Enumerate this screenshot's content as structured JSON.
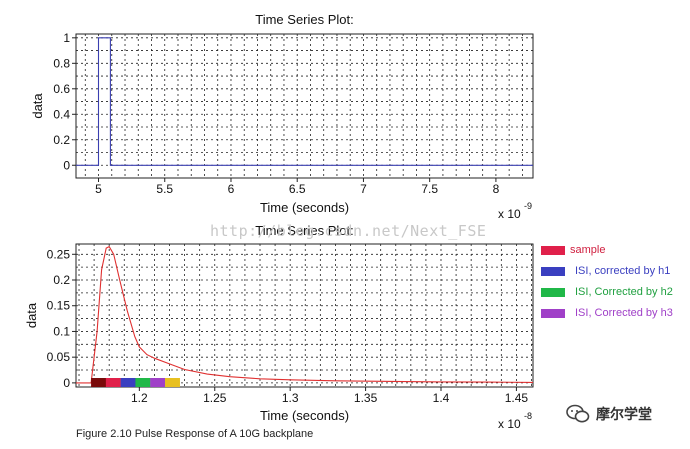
{
  "chart_data": [
    {
      "type": "line",
      "title": "Time Series Plot:",
      "xlabel": "Time (seconds)",
      "ylabel": "data",
      "x_multiplier": "x 10",
      "x_multiplier_exp": "-9",
      "xlim": [
        4.83,
        8.28
      ],
      "ylim": [
        -0.1,
        1.03
      ],
      "xticks": [
        "5",
        "5.5",
        "6",
        "6.5",
        "7",
        "7.5",
        "8"
      ],
      "xtick_values": [
        5,
        5.5,
        6,
        6.5,
        7,
        7.5,
        8
      ],
      "yticks": [
        "0",
        "0.2",
        "0.4",
        "0.6",
        "0.8",
        "1"
      ],
      "ytick_values": [
        0,
        0.2,
        0.4,
        0.6,
        0.8,
        1
      ],
      "grid": true,
      "series": [
        {
          "color": "#3a3fb0",
          "x": [
            4.83,
            5.0,
            5.0,
            5.09,
            5.09,
            8.28
          ],
          "y": [
            0,
            0,
            1,
            1,
            0,
            0
          ]
        }
      ]
    },
    {
      "type": "line",
      "title": "Time Series Plot:",
      "xlabel": "Time (seconds)",
      "ylabel": "data",
      "x_multiplier": "x 10",
      "x_multiplier_exp": "-8",
      "xlim": [
        1.158,
        1.461
      ],
      "ylim": [
        -0.008,
        0.27
      ],
      "xticks": [
        "1.2",
        "1.25",
        "1.3",
        "1.35",
        "1.4",
        "1.45"
      ],
      "xtick_values": [
        1.2,
        1.25,
        1.3,
        1.35,
        1.4,
        1.45
      ],
      "yticks": [
        "0",
        "0.05",
        "0.1",
        "0.15",
        "0.2",
        "0.25"
      ],
      "ytick_values": [
        0,
        0.05,
        0.1,
        0.15,
        0.2,
        0.25
      ],
      "grid": true,
      "series": [
        {
          "color": "#e03030",
          "x": [
            1.158,
            1.168,
            1.172,
            1.175,
            1.178,
            1.18,
            1.183,
            1.187,
            1.192,
            1.197,
            1.2,
            1.205,
            1.21,
            1.22,
            1.23,
            1.245,
            1.26,
            1.28,
            1.3,
            1.33,
            1.36,
            1.4,
            1.43,
            1.461
          ],
          "y": [
            0,
            0,
            0.1,
            0.22,
            0.262,
            0.265,
            0.25,
            0.2,
            0.14,
            0.09,
            0.07,
            0.055,
            0.048,
            0.037,
            0.026,
            0.017,
            0.012,
            0.008,
            0.006,
            0.004,
            0.003,
            0.002,
            0.0015,
            0.001
          ]
        }
      ],
      "sample_markers": {
        "x_start": 1.168,
        "x_step": 0.0098,
        "colors": [
          "#7a0a0a",
          "#e0204a",
          "#3a3fc0",
          "#20b848",
          "#a040c8",
          "#e8c020"
        ]
      },
      "legend": {
        "position": "right",
        "entries": [
          {
            "label": "sample",
            "color": "#e0204a",
            "text_color": "#d02040"
          },
          {
            "label": "ISI, corrected by h1",
            "color": "#3a3fc0",
            "text_color": "#3a3fc0"
          },
          {
            "label": "ISI, Corrected by h2",
            "color": "#20b848",
            "text_color": "#20a040"
          },
          {
            "label": "ISI, Corrected by h3",
            "color": "#a040c8",
            "text_color": "#a040c8"
          }
        ]
      }
    }
  ],
  "caption": "Figure 2.10 Pulse Response of A 10G backplane",
  "watermark": "http://blog.csdn.net/Next_FSE",
  "brand": {
    "name": "摩尔学堂",
    "icon": "wechat-icon"
  }
}
